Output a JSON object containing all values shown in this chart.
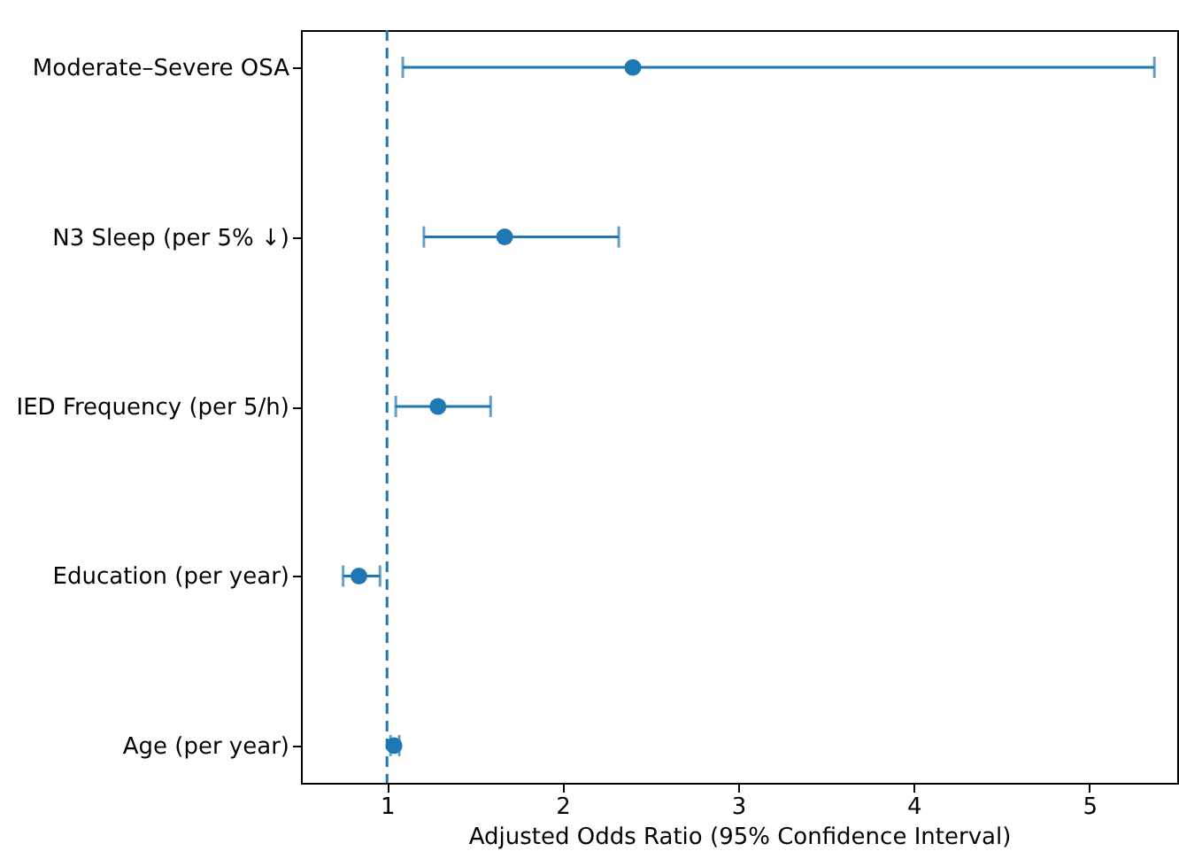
{
  "chart_data": {
    "type": "scatter",
    "orientation": "horizontal",
    "xlabel": "Adjusted Odds Ratio (95% Confidence Interval)",
    "categories": [
      "Moderate–Severe OSA",
      "N3 Sleep (per 5% ↓)",
      "IED Frequency (per 5/h)",
      "Education (per year)",
      "Age (per year)"
    ],
    "series": [
      {
        "color": "#1f77b4",
        "values": [
          2.4,
          1.67,
          1.29,
          0.84,
          1.04
        ],
        "errors": [
          [
            1.09,
            5.37
          ],
          [
            1.21,
            2.32
          ],
          [
            1.05,
            1.59
          ],
          [
            0.75,
            0.96
          ],
          [
            1.02,
            1.07
          ]
        ]
      }
    ],
    "xlim": [
      0.51,
      5.5
    ],
    "xticks": [
      1,
      2,
      3,
      4,
      5
    ],
    "marker": "circle",
    "grid": false,
    "ref_lines": [
      {
        "axis": "x",
        "value": 1,
        "color": "#1f77b4",
        "line_style": "dashed"
      }
    ]
  }
}
